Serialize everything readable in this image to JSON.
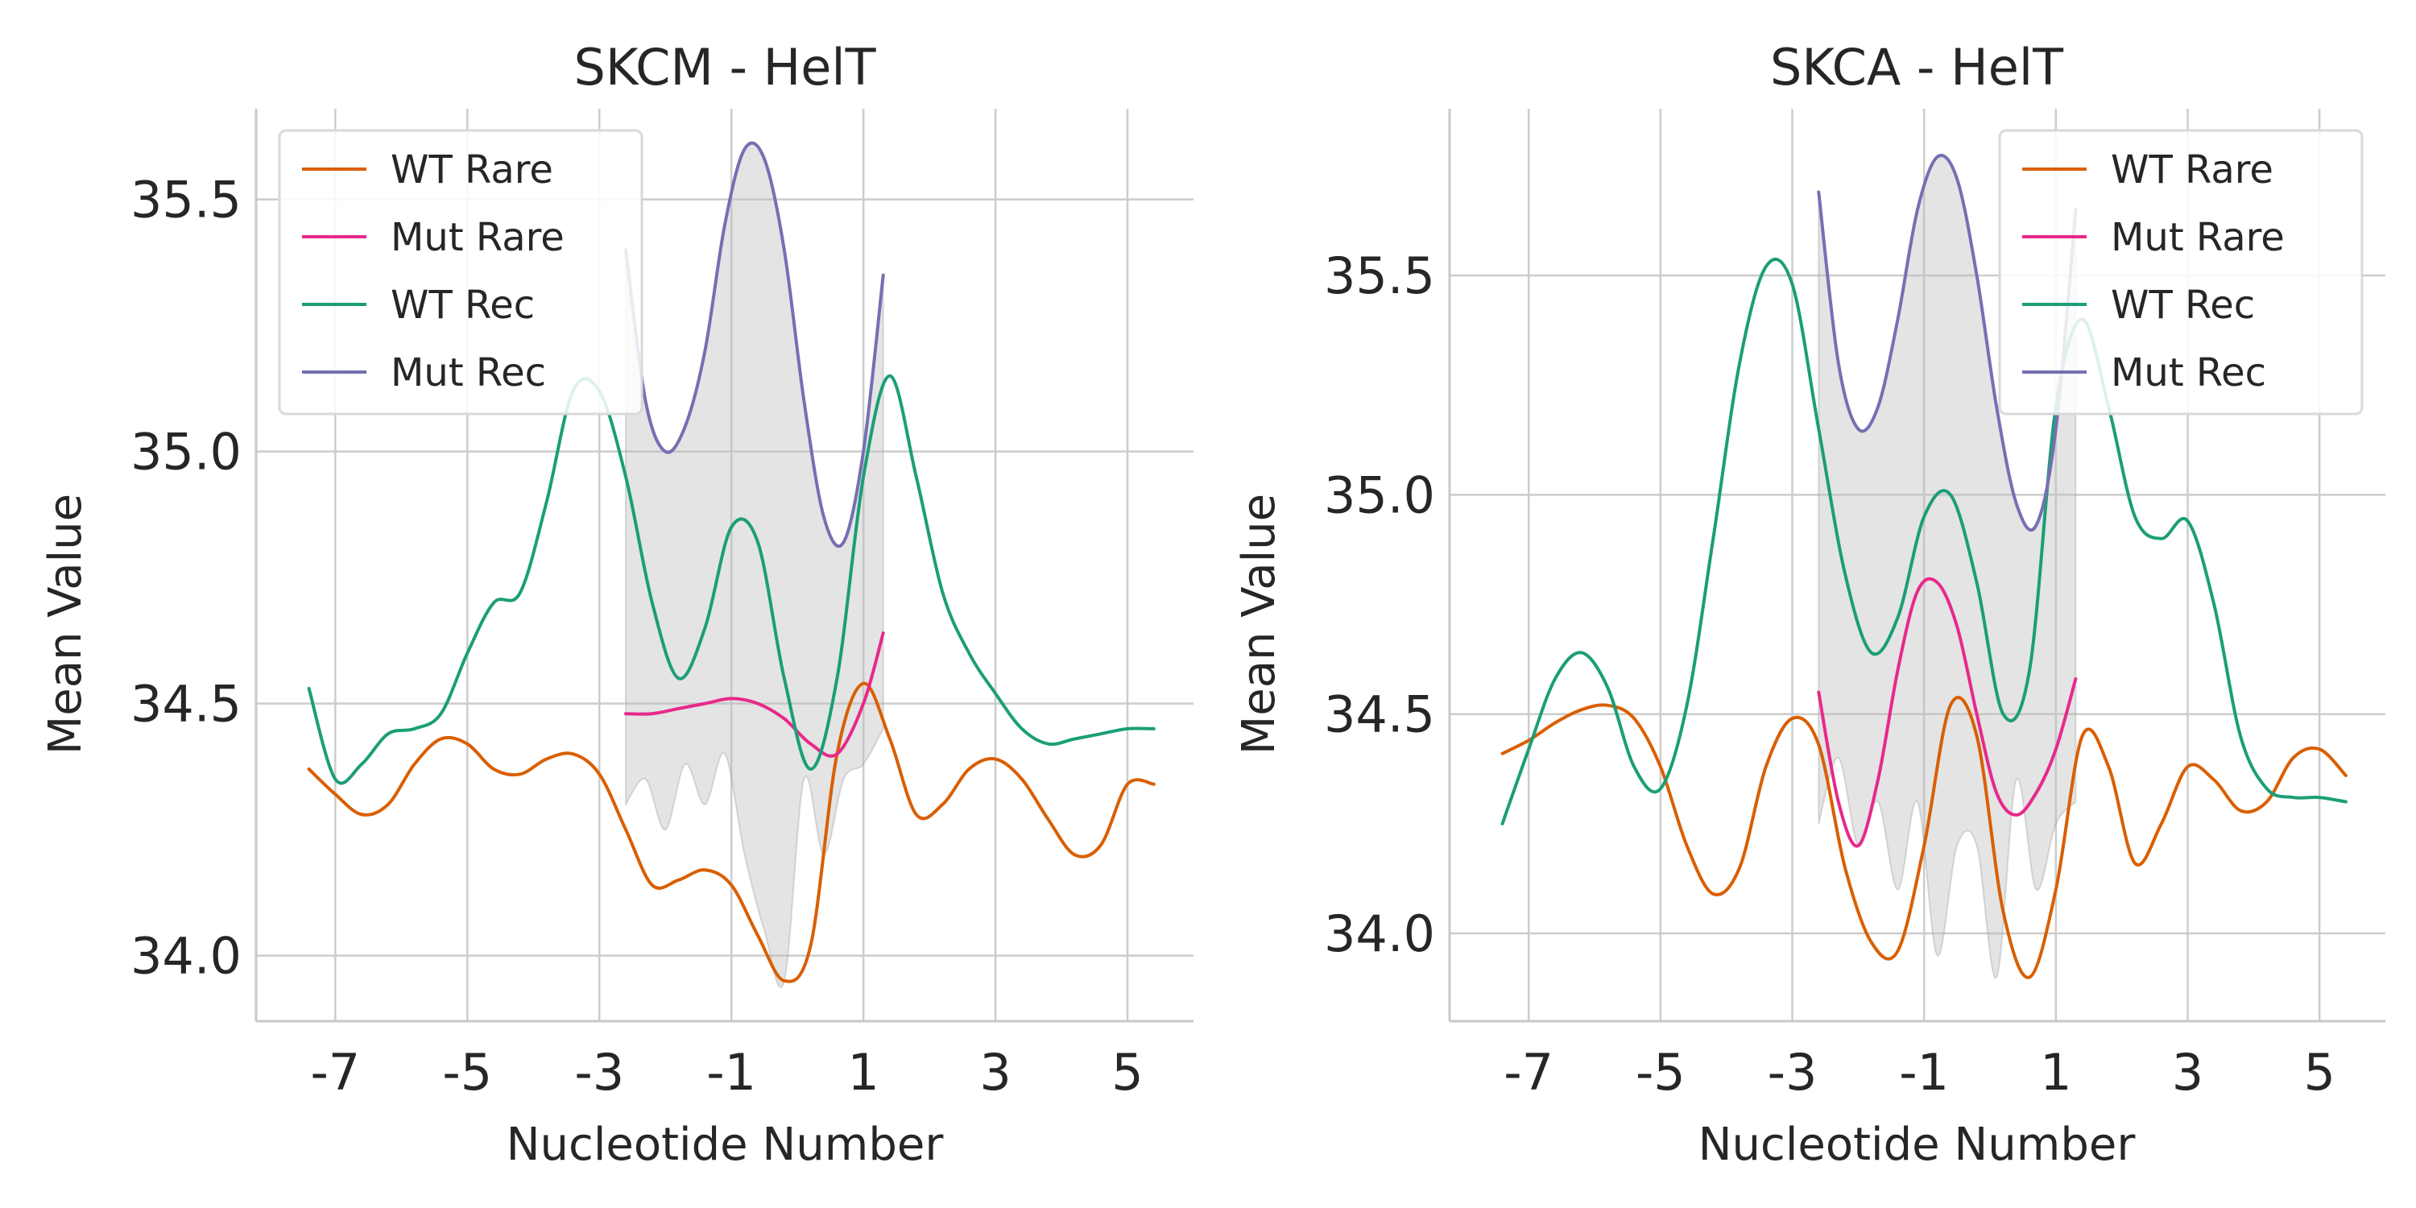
{
  "chart_data": [
    {
      "type": "line",
      "title": "SKCM - HelT",
      "xlabel": "Nucleotide Number",
      "ylabel": "Mean Value",
      "xlim": [
        -8.2,
        6.0
      ],
      "ylim": [
        33.87,
        35.68
      ],
      "xticks": [
        -7,
        -5,
        -3,
        -1,
        1,
        3,
        5
      ],
      "xtick_labels": [
        "-7",
        "-5",
        "-3",
        "-1",
        "1",
        "3",
        "5"
      ],
      "yticks": [
        34.0,
        34.5,
        35.0,
        35.5
      ],
      "ytick_labels": [
        "34.0",
        "34.5",
        "35.0",
        "35.5"
      ],
      "grid": true,
      "legend_position": "top-left",
      "series": [
        {
          "name": "WT Rare",
          "color": "#d95f02",
          "x": [
            -7.4,
            -7.0,
            -6.6,
            -6.2,
            -5.8,
            -5.4,
            -5.0,
            -4.6,
            -4.2,
            -3.8,
            -3.4,
            -3.0,
            -2.6,
            -2.2,
            -1.8,
            -1.4,
            -1.0,
            -0.6,
            -0.2,
            0.2,
            0.6,
            1.0,
            1.4,
            1.8,
            2.2,
            2.6,
            3.0,
            3.4,
            3.8,
            4.2,
            4.6,
            5.0,
            5.4
          ],
          "y": [
            34.37,
            34.32,
            34.28,
            34.3,
            34.38,
            34.43,
            34.42,
            34.37,
            34.36,
            34.39,
            34.4,
            34.36,
            34.25,
            34.14,
            34.15,
            34.17,
            34.14,
            34.04,
            33.95,
            34.02,
            34.4,
            34.54,
            34.43,
            34.28,
            34.3,
            34.37,
            34.39,
            34.35,
            34.27,
            34.2,
            34.22,
            34.34,
            34.34
          ]
        },
        {
          "name": "Mut Rare",
          "color": "#e7298a",
          "x": [
            -2.6,
            -2.2,
            -1.8,
            -1.4,
            -1.0,
            -0.6,
            -0.2,
            0.2,
            0.6,
            1.0,
            1.3
          ],
          "y": [
            34.48,
            34.48,
            34.49,
            34.5,
            34.51,
            34.5,
            34.47,
            34.42,
            34.4,
            34.5,
            34.64
          ]
        },
        {
          "name": "WT Rec",
          "color": "#1b9e77",
          "x": [
            -7.4,
            -7.0,
            -6.6,
            -6.2,
            -5.8,
            -5.4,
            -5.0,
            -4.6,
            -4.2,
            -3.8,
            -3.4,
            -3.0,
            -2.6,
            -2.2,
            -1.8,
            -1.4,
            -1.0,
            -0.6,
            -0.2,
            0.2,
            0.6,
            1.0,
            1.4,
            1.8,
            2.2,
            2.6,
            3.0,
            3.4,
            3.8,
            4.2,
            4.6,
            5.0,
            5.4
          ],
          "y": [
            34.53,
            34.35,
            34.38,
            34.44,
            34.45,
            34.48,
            34.6,
            34.7,
            34.72,
            34.9,
            35.12,
            35.12,
            34.95,
            34.7,
            34.55,
            34.65,
            34.85,
            34.82,
            34.55,
            34.37,
            34.55,
            34.95,
            35.15,
            34.95,
            34.72,
            34.6,
            34.52,
            34.45,
            34.42,
            34.43,
            34.44,
            34.45,
            34.45
          ]
        },
        {
          "name": "Mut Rec",
          "color": "#7570b3",
          "x": [
            -2.6,
            -2.3,
            -2.0,
            -1.7,
            -1.4,
            -1.1,
            -0.8,
            -0.5,
            -0.2,
            0.1,
            0.4,
            0.7,
            1.0,
            1.3
          ],
          "y": [
            35.4,
            35.1,
            35.0,
            35.05,
            35.2,
            35.45,
            35.6,
            35.58,
            35.4,
            35.1,
            34.87,
            34.82,
            35.0,
            35.35
          ]
        }
      ],
      "bands": [
        {
          "x": [
            -2.6,
            -2.3,
            -2.0,
            -1.7,
            -1.4,
            -1.1,
            -0.8,
            -0.5,
            -0.2,
            0.1,
            0.4,
            0.7,
            1.0,
            1.3
          ],
          "upper": [
            35.4,
            35.1,
            35.0,
            35.05,
            35.2,
            35.45,
            35.6,
            35.58,
            35.4,
            35.1,
            34.87,
            34.82,
            35.0,
            35.35
          ],
          "lower": [
            34.3,
            34.35,
            34.25,
            34.38,
            34.3,
            34.4,
            34.2,
            34.05,
            33.95,
            34.35,
            34.2,
            34.35,
            34.38,
            34.45
          ]
        }
      ]
    },
    {
      "type": "line",
      "title": "SKCA - HelT",
      "xlabel": "Nucleotide Number",
      "ylabel": "Mean Value",
      "xlim": [
        -8.2,
        6.0
      ],
      "ylim": [
        33.8,
        35.88
      ],
      "xticks": [
        -7,
        -5,
        -3,
        -1,
        1,
        3,
        5
      ],
      "xtick_labels": [
        "-7",
        "-5",
        "-3",
        "-1",
        "1",
        "3",
        "5"
      ],
      "yticks": [
        34.0,
        34.5,
        35.0,
        35.5
      ],
      "ytick_labels": [
        "34.0",
        "34.5",
        "35.0",
        "35.5"
      ],
      "grid": true,
      "legend_position": "top-right",
      "series": [
        {
          "name": "WT Rare",
          "color": "#d95f02",
          "x": [
            -7.4,
            -7.0,
            -6.6,
            -6.2,
            -5.8,
            -5.4,
            -5.0,
            -4.6,
            -4.2,
            -3.8,
            -3.4,
            -3.0,
            -2.6,
            -2.2,
            -1.8,
            -1.4,
            -1.0,
            -0.6,
            -0.2,
            0.2,
            0.6,
            1.0,
            1.4,
            1.8,
            2.2,
            2.6,
            3.0,
            3.4,
            3.8,
            4.2,
            4.6,
            5.0,
            5.4
          ],
          "y": [
            34.41,
            34.44,
            34.48,
            34.51,
            34.52,
            34.49,
            34.38,
            34.2,
            34.09,
            34.15,
            34.38,
            34.49,
            34.43,
            34.15,
            33.98,
            33.96,
            34.2,
            34.52,
            34.45,
            34.05,
            33.9,
            34.1,
            34.45,
            34.38,
            34.16,
            34.25,
            34.38,
            34.35,
            34.28,
            34.3,
            34.4,
            34.42,
            34.36
          ]
        },
        {
          "name": "Mut Rare",
          "color": "#e7298a",
          "x": [
            -2.6,
            -2.3,
            -2.0,
            -1.7,
            -1.4,
            -1.1,
            -0.8,
            -0.5,
            -0.2,
            0.1,
            0.4,
            0.7,
            1.0,
            1.3
          ],
          "y": [
            34.55,
            34.3,
            34.2,
            34.35,
            34.6,
            34.78,
            34.8,
            34.7,
            34.5,
            34.32,
            34.27,
            34.32,
            34.42,
            34.58
          ]
        },
        {
          "name": "WT Rec",
          "color": "#1b9e77",
          "x": [
            -7.4,
            -7.0,
            -6.6,
            -6.2,
            -5.8,
            -5.4,
            -5.0,
            -4.6,
            -4.2,
            -3.8,
            -3.4,
            -3.0,
            -2.6,
            -2.2,
            -1.8,
            -1.4,
            -1.0,
            -0.6,
            -0.2,
            0.2,
            0.6,
            1.0,
            1.4,
            1.8,
            2.2,
            2.6,
            3.0,
            3.4,
            3.8,
            4.2,
            4.6,
            5.0,
            5.4
          ],
          "y": [
            34.25,
            34.42,
            34.58,
            34.64,
            34.56,
            34.38,
            34.33,
            34.52,
            34.9,
            35.3,
            35.52,
            35.48,
            35.15,
            34.82,
            34.64,
            34.72,
            34.95,
            35.0,
            34.8,
            34.5,
            34.6,
            35.2,
            35.4,
            35.2,
            34.95,
            34.9,
            34.94,
            34.75,
            34.45,
            34.33,
            34.31,
            34.31,
            34.3
          ]
        },
        {
          "name": "Mut Rec",
          "color": "#7570b3",
          "x": [
            -2.6,
            -2.3,
            -2.0,
            -1.7,
            -1.4,
            -1.1,
            -0.8,
            -0.5,
            -0.2,
            0.1,
            0.4,
            0.7,
            1.0,
            1.3
          ],
          "y": [
            35.69,
            35.3,
            35.15,
            35.2,
            35.4,
            35.65,
            35.77,
            35.72,
            35.5,
            35.2,
            34.98,
            34.93,
            35.15,
            35.65
          ]
        }
      ],
      "bands": [
        {
          "x": [
            -2.6,
            -2.3,
            -2.0,
            -1.7,
            -1.4,
            -1.1,
            -0.8,
            -0.5,
            -0.2,
            0.1,
            0.4,
            0.7,
            1.0,
            1.3
          ],
          "upper": [
            35.69,
            35.3,
            35.15,
            35.2,
            35.4,
            35.65,
            35.77,
            35.72,
            35.5,
            35.2,
            34.98,
            34.93,
            35.15,
            35.65
          ],
          "lower": [
            34.25,
            34.4,
            34.2,
            34.3,
            34.1,
            34.3,
            33.95,
            34.2,
            34.2,
            33.9,
            34.35,
            34.1,
            34.25,
            34.3
          ]
        }
      ]
    }
  ]
}
